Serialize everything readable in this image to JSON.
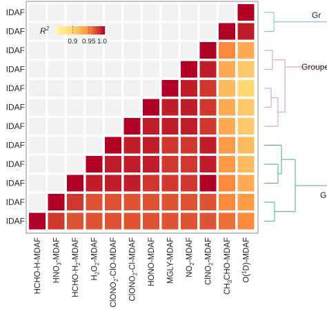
{
  "chart_data": {
    "type": "heatmap",
    "colorbar": {
      "title": "R",
      "title_superscript": "2",
      "ticks": [
        "0.9",
        "0.95",
        "1.0"
      ],
      "range": [
        0.85,
        1.0
      ]
    },
    "row_labels": [
      "IDAF",
      "IDAF",
      "IDAF",
      "IDAF",
      "IDAF",
      "IDAF",
      "IDAF",
      "IDAF",
      "IDAF",
      "IDAF",
      "IDAF",
      "IDAF"
    ],
    "columns": [
      {
        "base": "HCHO-H-MDAF",
        "parts": [
          [
            "HCHO-H-MDAF",
            ""
          ]
        ]
      },
      {
        "base": "HNO3-MDAF",
        "parts": [
          [
            "HNO",
            ""
          ],
          [
            "3",
            "sub"
          ],
          [
            "-MDAF",
            ""
          ]
        ]
      },
      {
        "base": "HCHO-H2-MDAF",
        "parts": [
          [
            "HCHO-H",
            ""
          ],
          [
            "2",
            "sub"
          ],
          [
            "-MDAF",
            ""
          ]
        ]
      },
      {
        "base": "H2O2-MDAF",
        "parts": [
          [
            "H",
            ""
          ],
          [
            "2",
            "sub"
          ],
          [
            "O",
            ""
          ],
          [
            "2",
            "sub"
          ],
          [
            "-MDAF",
            ""
          ]
        ]
      },
      {
        "base": "ClONO2-ClO-MDAF",
        "parts": [
          [
            "ClONO",
            ""
          ],
          [
            "2",
            "sub"
          ],
          [
            "-ClO-MDAF",
            ""
          ]
        ]
      },
      {
        "base": "ClONO2-Cl-MDAF",
        "parts": [
          [
            "ClONO",
            ""
          ],
          [
            "2",
            "sub"
          ],
          [
            "-Cl-MDAF",
            ""
          ]
        ]
      },
      {
        "base": "HONO-MDAF",
        "parts": [
          [
            "HONO-MDAF",
            ""
          ]
        ]
      },
      {
        "base": "MGLY-MDAF",
        "parts": [
          [
            "MGLY-MDAF",
            ""
          ]
        ]
      },
      {
        "base": "NO2-MDAF",
        "parts": [
          [
            "NO",
            ""
          ],
          [
            "2",
            "sub"
          ],
          [
            "-MDAF",
            ""
          ]
        ]
      },
      {
        "base": "ClNO2-MDAF",
        "parts": [
          [
            "ClNO",
            ""
          ],
          [
            "2",
            "sub"
          ],
          [
            "-MDAF",
            ""
          ]
        ]
      },
      {
        "base": "CH3CHO-MDAF",
        "parts": [
          [
            "CH",
            ""
          ],
          [
            "3",
            "sub"
          ],
          [
            "CHO-MDAF",
            ""
          ]
        ]
      },
      {
        "base": "O(1D)-MDAF",
        "parts": [
          [
            "O(",
            ""
          ],
          [
            "1",
            "sup"
          ],
          [
            "D)-MDAF",
            ""
          ]
        ]
      }
    ],
    "values": [
      [
        null,
        null,
        null,
        null,
        null,
        null,
        null,
        null,
        null,
        null,
        null,
        1.0
      ],
      [
        null,
        null,
        null,
        null,
        null,
        null,
        null,
        null,
        null,
        null,
        1.0,
        0.99
      ],
      [
        null,
        null,
        null,
        null,
        null,
        null,
        null,
        null,
        null,
        1.0,
        0.95,
        0.93
      ],
      [
        null,
        null,
        null,
        null,
        null,
        null,
        null,
        null,
        1.0,
        0.99,
        0.93,
        0.91
      ],
      [
        null,
        null,
        null,
        null,
        null,
        null,
        null,
        1.0,
        0.99,
        0.98,
        0.92,
        0.9
      ],
      [
        null,
        null,
        null,
        null,
        null,
        null,
        1.0,
        0.99,
        0.99,
        0.98,
        0.93,
        0.91
      ],
      [
        null,
        null,
        null,
        null,
        null,
        1.0,
        0.99,
        0.99,
        0.99,
        0.98,
        0.93,
        0.91
      ],
      [
        null,
        null,
        null,
        null,
        1.0,
        0.99,
        0.99,
        0.98,
        0.98,
        0.99,
        0.94,
        0.92
      ],
      [
        null,
        null,
        null,
        1.0,
        0.99,
        0.99,
        0.99,
        0.98,
        0.98,
        0.99,
        0.94,
        0.92
      ],
      [
        null,
        null,
        1.0,
        0.99,
        0.99,
        0.99,
        0.98,
        0.98,
        0.98,
        1.0,
        0.95,
        0.93
      ],
      [
        null,
        1.0,
        0.98,
        0.97,
        0.97,
        0.97,
        0.97,
        0.97,
        0.97,
        0.97,
        0.95,
        0.94
      ],
      [
        1.0,
        0.98,
        0.97,
        0.97,
        0.97,
        0.97,
        0.97,
        0.97,
        0.97,
        0.97,
        0.96,
        0.95
      ]
    ],
    "group_labels": [
      "Gr",
      "Groupe",
      "G"
    ],
    "dendrogram_colors": [
      "#6fb8d6",
      "#d98fc0",
      "#3fae8f"
    ]
  }
}
